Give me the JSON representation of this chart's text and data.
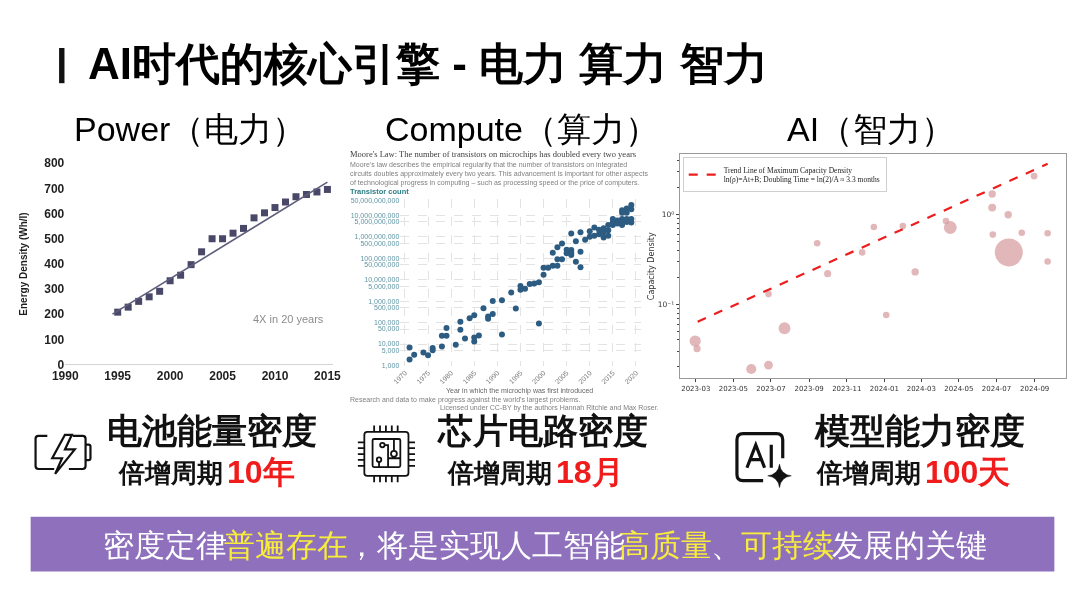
{
  "chart_data": [
    {
      "type": "other",
      "title": "AI时代的核心引擎 - 电力 算力 智力"
    },
    {
      "type": "scatter",
      "title": "Power（电力）",
      "ylabel": "Energy Density (Wh/l)",
      "annotations": [
        "4X in 20 years"
      ],
      "x": [
        1995,
        1996,
        1997,
        1998,
        1999,
        2000,
        2001,
        2002,
        2003,
        2004,
        2005,
        2006,
        2007,
        2008,
        2009,
        2010,
        2011,
        2012,
        2013,
        2014,
        2015
      ],
      "series": [
        {
          "color": "#4a4868",
          "marker": "square",
          "values": [
            208,
            228,
            251,
            269,
            291,
            333,
            355,
            397,
            448,
            500,
            500,
            522,
            541,
            583,
            603,
            624,
            646,
            667,
            676,
            686,
            696
          ]
        },
        {
          "type": "line",
          "color": "#5e5e7c",
          "x": [
            1994.5,
            2015
          ],
          "values": [
            200,
            725
          ]
        }
      ],
      "xlim": [
        1990,
        2015.5
      ],
      "xticks": [
        1990,
        1995,
        2000,
        2005,
        2010,
        2015
      ],
      "ylim": [
        0,
        800
      ],
      "yticks": [
        0,
        100,
        200,
        300,
        400,
        500,
        600,
        700,
        800
      ]
    },
    {
      "type": "scatter",
      "title": "Compute（算力）",
      "subtitle": "Moore's Law: The number of transistors on microchips has doubled every two years",
      "ylabel": "Transistor count",
      "xlabel": "Year in which the microchip was first introduced",
      "annotations": [
        "Moore's law describes the empirical regularity that the number of transistors on integrated circuits doubles approximately every two years. This advancement is important for other aspects of technological progress in computing – such as processing speed or the price of computers.",
        "Research and data to make progress against the world's largest problems.",
        "Licensed under CC-BY by the authors Hannah Ritchie and Max Roser."
      ],
      "marker": "circle",
      "log": true,
      "grid": true,
      "x": [
        1971,
        1971,
        1972,
        1974,
        1975,
        1976,
        1976,
        1978,
        1978,
        1979,
        1979,
        1981,
        1982,
        1982,
        1983,
        1984,
        1985,
        1985,
        1985,
        1986,
        1987,
        1988,
        1988,
        1989,
        1989,
        1991,
        1991,
        1993,
        1994,
        1995,
        1995,
        1996,
        1997,
        1998,
        1999,
        1999,
        2000,
        2000,
        2001,
        2002,
        2003,
        2003,
        2004,
        2002,
        2003,
        2004,
        2005,
        2005,
        2006,
        2006,
        2006,
        2007,
        2008,
        2008,
        2006,
        2007,
        2008,
        2009,
        2010,
        2010,
        2011,
        2011,
        2012,
        2012,
        2013,
        2013,
        2013,
        2014,
        2014,
        2014,
        2015,
        2015,
        2015,
        2016,
        2016,
        2017,
        2017,
        2017,
        2017,
        2017,
        2018,
        2018,
        2018,
        2018,
        2019,
        2019,
        2019,
        2019
      ],
      "series": [
        {
          "color": "#2d5c82",
          "values": [
            6800,
            1900,
            3200,
            4000,
            3000,
            6500,
            5100,
            7600,
            24000,
            24000,
            56000,
            9300,
            46000,
            110000,
            18000,
            160000,
            220000,
            20000,
            13000,
            25000,
            460000,
            150000,
            190000,
            250000,
            1000000,
            1100000,
            28000,
            2500000,
            450000,
            3400000,
            5000000,
            3800000,
            6300000,
            6600000,
            7600000,
            91000,
            36000000,
            17000000,
            36000000,
            44000000,
            45000000,
            89000000,
            89000000,
            180000000,
            320000000,
            490000000,
            170000000,
            250000000,
            240000000,
            180000000,
            140000000,
            69000000,
            38000000,
            200000000,
            1400000000,
            620000000,
            1600000000,
            720000000,
            1000000000,
            1800000000,
            1100000000,
            2700000000,
            1300000000,
            2100000000,
            930000000,
            1600000000,
            2500000000,
            1100000000,
            2000000000,
            3500000000,
            6800000000,
            4900000000,
            3500000000,
            5800000000,
            4200000000,
            6800000000,
            4900000000,
            3500000000,
            13000000000,
            17000000000,
            13000000000,
            6800000000,
            4900000000,
            21000000000,
            30000000000,
            19000000000,
            6800000000,
            4600000000
          ]
        }
      ],
      "xlim": [
        1969,
        2021
      ],
      "xticks": [
        1970,
        1975,
        1980,
        1985,
        1990,
        1995,
        2000,
        2005,
        2010,
        2015,
        2020
      ],
      "ylim": [
        900,
        55000000000
      ],
      "yticks": [
        {
          "value": 1000,
          "label": "1,000"
        },
        {
          "value": 5000,
          "label": "5,000"
        },
        {
          "value": 10000,
          "label": "10,000"
        },
        {
          "value": 50000,
          "label": "50,000"
        },
        {
          "value": 100000,
          "label": "100,000"
        },
        {
          "value": 500000,
          "label": "500,000"
        },
        {
          "value": 1000000,
          "label": "1,000,000"
        },
        {
          "value": 5000000,
          "label": "5,000,000"
        },
        {
          "value": 10000000,
          "label": "10,000,000"
        },
        {
          "value": 50000000,
          "label": "50,000,000"
        },
        {
          "value": 100000000,
          "label": "100,000,000"
        },
        {
          "value": 500000000,
          "label": "500,000,000"
        },
        {
          "value": 1000000000,
          "label": "1,000,000,000"
        },
        {
          "value": 5000000000,
          "label": "5,000,000,000"
        },
        {
          "value": 10000000000,
          "label": "10,000,000,000"
        },
        {
          "value": 50000000000,
          "label": "50,000,000,000"
        }
      ]
    },
    {
      "type": "bubble",
      "title": "AI（智力）",
      "ylabel": "Capacity Density",
      "log": true,
      "legend": "top left",
      "line_style": "dashed",
      "series": [
        {
          "color": "#d4999b",
          "x": [
            "2023-02-28",
            "2023-03-03",
            "2023-05-30",
            "2023-06-27",
            "2023-06-27",
            "2023-07-23",
            "2023-09-14",
            "2023-10-01",
            "2023-11-26",
            "2023-12-15",
            "2024-01-04",
            "2024-01-31",
            "2024-02-20",
            "2024-04-10",
            "2024-04-17",
            "2024-06-24",
            "2024-06-24",
            "2024-06-25",
            "2024-07-20",
            "2024-07-21",
            "2024-08-11",
            "2024-08-31",
            "2024-09-22",
            "2024-09-22"
          ],
          "values": [
            0.039,
            0.032,
            0.019,
            0.021,
            0.13,
            0.054,
            0.48,
            0.22,
            0.38,
            0.73,
            0.076,
            0.75,
            0.23,
            0.85,
            0.72,
            1.7,
            1.2,
            0.6,
            1.0,
            0.38,
            0.63,
            2.7,
            0.62,
            0.3
          ],
          "sizes": [
            0.16,
            0.065,
            0.13,
            0.1,
            0.055,
            0.18,
            0.055,
            0.065,
            0.055,
            0.055,
            0.055,
            0.055,
            0.07,
            0.055,
            0.21,
            0.07,
            0.08,
            0.055,
            0.07,
            1,
            0.055,
            0.06,
            0.055,
            0.055
          ]
        },
        {
          "type": "line",
          "name": "Trend Line of Maximum Capacity Density\nln(ρ)=At+B; Doubling Time = ln(2)/A ≈ 3.3 months",
          "color": "#ee1d1d",
          "x": [
            "2023-03-04",
            "2024-09-22"
          ],
          "values": [
            0.064,
            3.7
          ]
        }
      ],
      "xlim": [
        "2023-02-03",
        "2024-10-22"
      ],
      "xticks": [
        "2023-03",
        "2023-05",
        "2023-07",
        "2023-09",
        "2023-11",
        "2024-01",
        "2024-03",
        "2024-05",
        "2024-07",
        "2024-09"
      ],
      "ylim": [
        0.015,
        4.7
      ],
      "yticks": [
        {
          "value": 0.02,
          "label": null
        },
        {
          "value": 0.03,
          "label": null
        },
        {
          "value": 0.04,
          "label": null
        },
        {
          "value": 0.05,
          "label": null
        },
        {
          "value": 0.06,
          "label": null
        },
        {
          "value": 0.07,
          "label": null
        },
        {
          "value": 0.08,
          "label": null
        },
        {
          "value": 0.09,
          "label": null
        },
        {
          "value": 0.1,
          "label": "10⁻¹"
        },
        {
          "value": 0.2,
          "label": null
        },
        {
          "value": 0.3,
          "label": null
        },
        {
          "value": 0.4,
          "label": null
        },
        {
          "value": 0.5,
          "label": null
        },
        {
          "value": 0.6,
          "label": null
        },
        {
          "value": 0.7,
          "label": null
        },
        {
          "value": 0.8,
          "label": null
        },
        {
          "value": 0.9,
          "label": null
        },
        {
          "value": 1,
          "label": "10⁰"
        },
        {
          "value": 2,
          "label": null
        },
        {
          "value": 3,
          "label": null
        },
        {
          "value": 4,
          "label": null
        }
      ]
    },
    {
      "type": "other",
      "annotations": [
        "电池能量密度",
        "倍增周期",
        "10年",
        "芯片电路密度",
        "倍增周期",
        "18月",
        "模型能力密度",
        "倍增周期",
        "100天"
      ]
    },
    {
      "type": "other",
      "annotations": [
        "密度定律",
        "普遍存在",
        "，将是实现人工智能",
        "高质量",
        "、",
        "可持续",
        "发展的关键"
      ]
    }
  ]
}
